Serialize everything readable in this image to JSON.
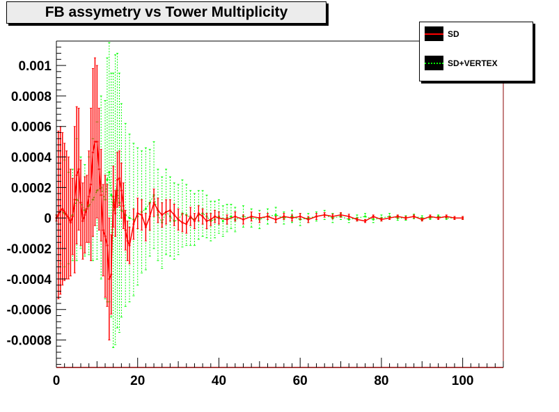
{
  "chart_data": {
    "type": "scatter",
    "title": "FB assymetry vs Tower Multiplicity",
    "xlabel": "",
    "ylabel": "",
    "xlim": [
      0,
      110
    ],
    "ylim": [
      -0.00098,
      0.00116
    ],
    "xticks": [
      0,
      20,
      40,
      60,
      80,
      100
    ],
    "xtick_labels": [
      "0",
      "20",
      "40",
      "60",
      "80",
      "100"
    ],
    "yticks": [
      -0.0008,
      -0.0006,
      -0.0004,
      -0.0002,
      0,
      0.0002,
      0.0004,
      0.0006,
      0.0008,
      0.001
    ],
    "ytick_labels": [
      "-0.0008",
      "-0.0006",
      "-0.0004",
      "-0.0002",
      "0",
      "0.0002",
      "0.0004",
      "0.0006",
      "0.0008",
      "0.001"
    ],
    "legend": {
      "position": "top-right",
      "entries": [
        {
          "label": "SD",
          "color": "#ff0000",
          "style": "solid"
        },
        {
          "label": "SD+VERTEX",
          "color": "#00ff00",
          "style": "dotted"
        }
      ]
    },
    "series": [
      {
        "name": "SD",
        "color": "#ff0000",
        "style": "solid",
        "x": [
          0,
          0.5,
          1,
          1.5,
          2,
          2.5,
          3,
          3.5,
          4,
          4.5,
          5,
          5.5,
          6,
          6.5,
          7,
          7.5,
          8,
          8.5,
          9,
          9.5,
          10,
          10.5,
          11,
          11.5,
          12,
          12.5,
          13,
          13.5,
          14,
          14.5,
          15,
          15.5,
          16,
          16.5,
          17,
          17.5,
          18,
          19,
          20,
          21,
          22,
          23,
          24,
          25,
          26,
          27,
          28,
          29,
          30,
          31,
          32,
          33,
          34,
          35,
          36,
          37,
          38,
          39,
          40,
          42,
          44,
          46,
          48,
          50,
          52,
          54,
          56,
          58,
          60,
          62,
          64,
          66,
          68,
          70,
          72,
          74,
          76,
          78,
          80,
          82,
          84,
          86,
          88,
          90,
          92,
          94,
          96,
          98,
          100
        ],
        "y": [
          0,
          2e-05,
          5e-05,
          6e-05,
          4e-05,
          2e-05,
          0,
          -3e-05,
          1e-05,
          0.00012,
          0.00028,
          0.00032,
          0.0001,
          -2e-05,
          2e-05,
          6e-05,
          0.00014,
          0.00022,
          0.00043,
          0.0005,
          0.0005,
          0.00032,
          0.00015,
          -8e-05,
          -0.00012,
          -0.00018,
          -0.0004,
          -0.00037,
          0.00014,
          3e-05,
          0.00025,
          0.00026,
          0.00018,
          8e-05,
          -8e-05,
          -0.00015,
          -0.00018,
          -4e-05,
          3e-05,
          2e-05,
          -6e-05,
          1e-05,
          0.0001,
          5e-05,
          2e-05,
          4e-05,
          5e-05,
          2e-05,
          -1e-05,
          -3e-05,
          -4e-05,
          1e-05,
          -2e-05,
          3e-05,
          1e-05,
          -2e-05,
          -1e-05,
          1e-05,
          0,
          -1e-05,
          1e-05,
          -1e-05,
          1e-05,
          0,
          1e-05,
          -1e-05,
          1e-05,
          0,
          1e-05,
          -1e-05,
          1e-05,
          2e-05,
          1e-05,
          2e-05,
          1e-05,
          -1e-05,
          -2e-05,
          1e-05,
          -1e-05,
          0,
          1e-05,
          0,
          1e-05,
          -1e-05,
          1e-05,
          0,
          1e-05,
          0,
          0
        ],
        "err": [
          2e-05,
          0.00055,
          0.00055,
          0.0005,
          0.00045,
          0.00042,
          0.0004,
          0.00035,
          0.00025,
          0.00048,
          0.00045,
          0.0004,
          0.00028,
          0.00025,
          0.00025,
          0.00022,
          0.0003,
          0.0005,
          0.00055,
          0.00055,
          0.0005,
          0.0004,
          0.0003,
          0.0003,
          0.0004,
          0.0004,
          0.0004,
          0.00026,
          0.0002,
          0.00015,
          0.00018,
          0.00018,
          0.00018,
          0.00015,
          0.00013,
          0.00013,
          0.00012,
          0.0001,
          0.0001,
          0.0001,
          9e-05,
          9e-05,
          9e-05,
          8e-05,
          8e-05,
          8e-05,
          7e-05,
          7e-05,
          7e-05,
          6e-05,
          6e-05,
          6e-05,
          5e-05,
          5e-05,
          5e-05,
          5e-05,
          4e-05,
          4e-05,
          4e-05,
          3e-05,
          3e-05,
          3e-05,
          3e-05,
          3e-05,
          2e-05,
          2e-05,
          2e-05,
          2e-05,
          2e-05,
          2e-05,
          2e-05,
          1.5e-05,
          1.5e-05,
          1.5e-05,
          1.5e-05,
          1e-05,
          1e-05,
          1e-05,
          1e-05,
          1e-05,
          1e-05,
          1e-05,
          1e-05,
          1e-05,
          1e-05,
          1e-05,
          1e-05,
          1e-05,
          1e-05
        ]
      },
      {
        "name": "SD+VERTEX",
        "color": "#00ff00",
        "style": "dotted",
        "x": [
          0,
          1,
          2,
          3,
          4,
          5,
          6,
          7,
          8,
          9,
          10,
          11,
          12,
          12.5,
          13,
          13.5,
          14,
          14.5,
          15,
          15.5,
          16,
          17,
          18,
          19,
          20,
          21,
          22,
          23,
          24,
          25,
          26,
          27,
          28,
          29,
          30,
          31,
          32,
          33,
          34,
          35,
          36,
          37,
          38,
          39,
          40,
          41,
          42,
          43,
          44,
          46,
          48,
          50,
          52,
          54,
          56,
          58,
          60,
          62,
          64,
          66,
          68,
          70,
          72,
          74,
          76,
          78,
          80,
          82,
          84,
          86,
          88,
          90,
          92,
          94,
          96,
          98,
          100
        ],
        "y": [
          0,
          5e-05,
          3e-05,
          0,
          2e-05,
          0.00012,
          0.0001,
          5e-05,
          8e-05,
          0.00012,
          0.00018,
          0.0002,
          0.00012,
          0.00025,
          0.0003,
          0.00015,
          5e-05,
          0.00012,
          0.00018,
          0.0001,
          5e-05,
          2e-05,
          0,
          -1e-05,
          1e-05,
          4e-05,
          6e-05,
          0.0001,
          0.00015,
          2e-05,
          -3e-05,
          4e-05,
          1e-05,
          -2e-05,
          -1e-05,
          3e-05,
          2e-05,
          0,
          -1e-05,
          2e-05,
          3e-05,
          1e-05,
          -2e-05,
          -1e-05,
          1e-05,
          -2e-05,
          0,
          1e-05,
          -1e-05,
          1e-05,
          0,
          -1e-05,
          1e-05,
          2e-05,
          0,
          1e-05,
          -1e-05,
          0,
          1e-05,
          2e-05,
          0,
          1e-05,
          -1e-05,
          0,
          1e-05,
          -1e-05,
          0,
          1e-05,
          0,
          0,
          1e-05,
          0,
          0,
          1e-05,
          0,
          0,
          0
        ],
        "err": [
          2e-05,
          0.00035,
          0.00035,
          0.0003,
          0.0003,
          0.0004,
          0.0003,
          0.0003,
          0.00032,
          0.0004,
          0.00045,
          0.0006,
          0.00065,
          0.0008,
          0.00085,
          0.0008,
          0.0009,
          0.00095,
          0.0009,
          0.00085,
          0.0007,
          0.0006,
          0.00055,
          0.0005,
          0.00045,
          0.0004,
          0.0004,
          0.00035,
          0.00035,
          0.0003,
          0.0003,
          0.00028,
          0.00026,
          0.00025,
          0.00023,
          0.00022,
          0.0002,
          0.00018,
          0.00017,
          0.00016,
          0.00015,
          0.00014,
          0.00013,
          0.00012,
          0.00011,
          0.0001,
          9e-05,
          8e-05,
          8e-05,
          7e-05,
          6e-05,
          6e-05,
          5e-05,
          5e-05,
          4e-05,
          4e-05,
          4e-05,
          3e-05,
          3e-05,
          3e-05,
          3e-05,
          2e-05,
          2e-05,
          2e-05,
          2e-05,
          2e-05,
          2e-05,
          2e-05,
          1.5e-05,
          1.5e-05,
          1.5e-05,
          1.5e-05,
          1e-05,
          1e-05,
          1e-05,
          1e-05,
          1e-05
        ]
      }
    ]
  }
}
